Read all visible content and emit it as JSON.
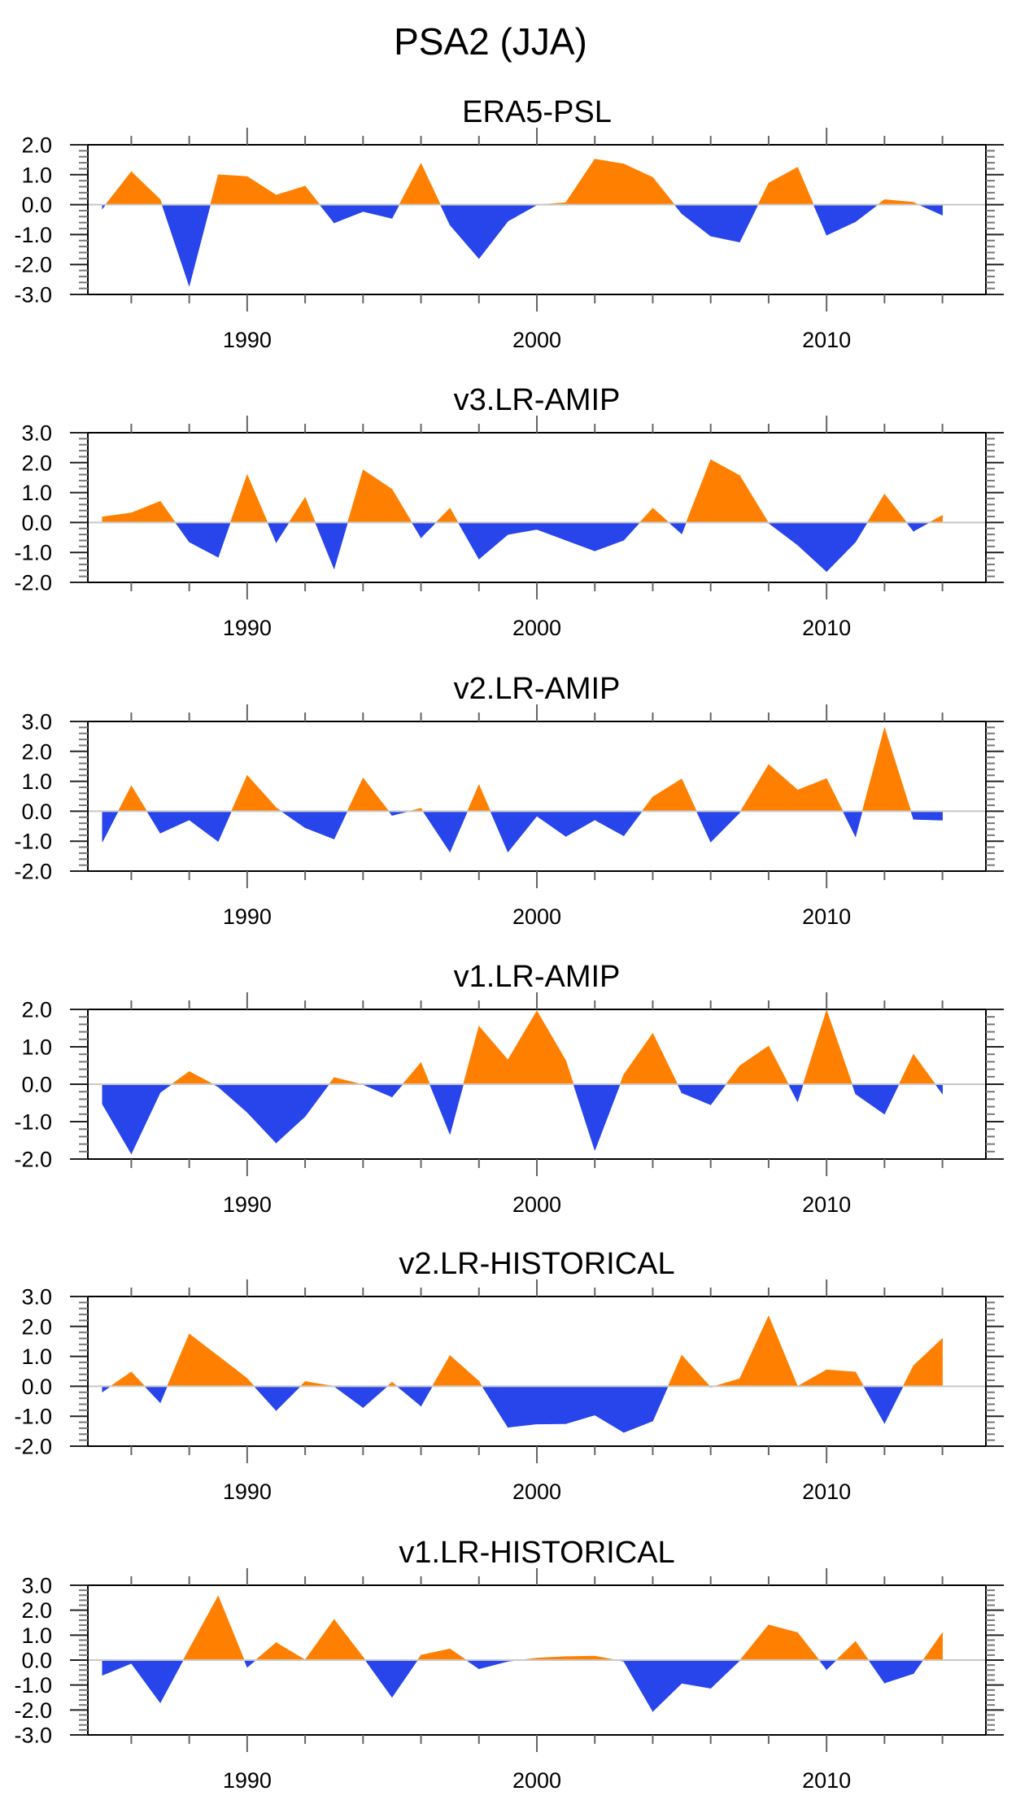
{
  "chart_data": {
    "type": "area",
    "title": "PSA2 (JJA)",
    "colors": {
      "positive": "#ff8000",
      "negative": "#2845eb",
      "zero_line": "#c8c8c8",
      "axis": "#000000",
      "tick": "#555555"
    },
    "x": [
      1985,
      1986,
      1987,
      1988,
      1989,
      1990,
      1991,
      1992,
      1993,
      1994,
      1995,
      1996,
      1997,
      1998,
      1999,
      2000,
      2001,
      2002,
      2003,
      2004,
      2005,
      2006,
      2007,
      2008,
      2009,
      2010,
      2011,
      2012,
      2013,
      2014
    ],
    "xlim": [
      1984.5,
      2015.5
    ],
    "x_major_ticks": [
      1990,
      2000,
      2010
    ],
    "x_tick_labels": [
      "1990",
      "2000",
      "2010"
    ],
    "x_minor_step": 2,
    "y_minor_step": 0.2,
    "grid": false,
    "legend": "none",
    "panels": [
      {
        "title": "ERA5-PSL",
        "ylim": [
          -3,
          2
        ],
        "y_ticks": [
          2,
          1,
          0,
          -1,
          -2,
          -3
        ],
        "y_tick_labels": [
          "2.0",
          "1.0",
          "0.0",
          "-1.0",
          "-2.0",
          "-3.0"
        ],
        "values": [
          -0.14,
          1.1,
          0.17,
          -2.72,
          1.0,
          0.94,
          0.32,
          0.62,
          -0.61,
          -0.23,
          -0.46,
          1.38,
          -0.68,
          -1.8,
          -0.55,
          -0.01,
          0.07,
          1.52,
          1.36,
          0.91,
          -0.3,
          -1.05,
          -1.25,
          0.72,
          1.25,
          -1.02,
          -0.57,
          0.17,
          0.08,
          -0.35
        ]
      },
      {
        "title": "v3.LR-AMIP",
        "ylim": [
          -2,
          3
        ],
        "y_ticks": [
          3,
          2,
          1,
          0,
          -1,
          -2
        ],
        "y_tick_labels": [
          "3.0",
          "2.0",
          "1.0",
          "0.0",
          "-1.0",
          "-2.0"
        ],
        "values": [
          0.19,
          0.32,
          0.71,
          -0.65,
          -1.16,
          1.6,
          -0.67,
          0.84,
          -1.55,
          1.76,
          1.11,
          -0.51,
          0.48,
          -1.22,
          -0.4,
          -0.23,
          -0.59,
          -0.95,
          -0.59,
          0.48,
          -0.38,
          2.1,
          1.57,
          -0.02,
          -0.75,
          -1.64,
          -0.65,
          0.95,
          -0.29,
          0.24
        ]
      },
      {
        "title": "v2.LR-AMIP",
        "ylim": [
          -2,
          3
        ],
        "y_ticks": [
          3,
          2,
          1,
          0,
          -1,
          -2
        ],
        "y_tick_labels": [
          "3.0",
          "2.0",
          "1.0",
          "0.0",
          "-1.0",
          "-2.0"
        ],
        "values": [
          -1.03,
          0.85,
          -0.73,
          -0.29,
          -1.01,
          1.2,
          0.12,
          -0.55,
          -0.93,
          1.11,
          -0.14,
          0.1,
          -1.36,
          0.89,
          -1.36,
          -0.16,
          -0.84,
          -0.29,
          -0.82,
          0.48,
          1.08,
          -1.03,
          -0.05,
          1.56,
          0.71,
          1.09,
          -0.85,
          2.79,
          -0.27,
          -0.3
        ]
      },
      {
        "title": "v1.LR-AMIP",
        "ylim": [
          -2,
          2
        ],
        "y_ticks": [
          2,
          1,
          0,
          -1,
          -2
        ],
        "y_tick_labels": [
          "2.0",
          "1.0",
          "0.0",
          "-1.0",
          "-2.0"
        ],
        "values": [
          -0.53,
          -1.86,
          -0.22,
          0.34,
          -0.07,
          -0.75,
          -1.57,
          -0.86,
          0.18,
          -0.01,
          -0.34,
          0.58,
          -1.34,
          1.55,
          0.65,
          1.96,
          0.63,
          -1.77,
          0.26,
          1.36,
          -0.23,
          -0.55,
          0.49,
          1.02,
          -0.47,
          1.98,
          -0.26,
          -0.8,
          0.8,
          -0.26
        ]
      },
      {
        "title": "v2.LR-HISTORICAL",
        "ylim": [
          -2,
          3
        ],
        "y_ticks": [
          3,
          2,
          1,
          0,
          -1,
          -2
        ],
        "y_tick_labels": [
          "3.0",
          "2.0",
          "1.0",
          "0.0",
          "-1.0",
          "-2.0"
        ],
        "values": [
          -0.19,
          0.48,
          -0.55,
          1.75,
          1.01,
          0.26,
          -0.81,
          0.16,
          0.0,
          -0.71,
          0.14,
          -0.66,
          1.03,
          0.17,
          -1.37,
          -1.26,
          -1.25,
          -0.96,
          -1.54,
          -1.16,
          1.04,
          -0.03,
          0.25,
          2.35,
          0.0,
          0.55,
          0.48,
          -1.24,
          0.69,
          1.6
        ]
      },
      {
        "title": "v1.LR-HISTORICAL",
        "ylim": [
          -3,
          3
        ],
        "y_ticks": [
          3,
          2,
          1,
          0,
          -1,
          -2,
          -3
        ],
        "y_tick_labels": [
          "3.0",
          "2.0",
          "1.0",
          "0.0",
          "-1.0",
          "-2.0",
          "-3.0"
        ],
        "values": [
          -0.61,
          -0.13,
          -1.71,
          0.45,
          2.57,
          -0.29,
          0.7,
          0.01,
          1.63,
          0.12,
          -1.49,
          0.2,
          0.45,
          -0.35,
          -0.05,
          0.08,
          0.14,
          0.16,
          -0.05,
          -2.06,
          -0.93,
          -1.13,
          -0.02,
          1.41,
          1.1,
          -0.38,
          0.75,
          -0.92,
          -0.54,
          1.1
        ]
      }
    ]
  }
}
